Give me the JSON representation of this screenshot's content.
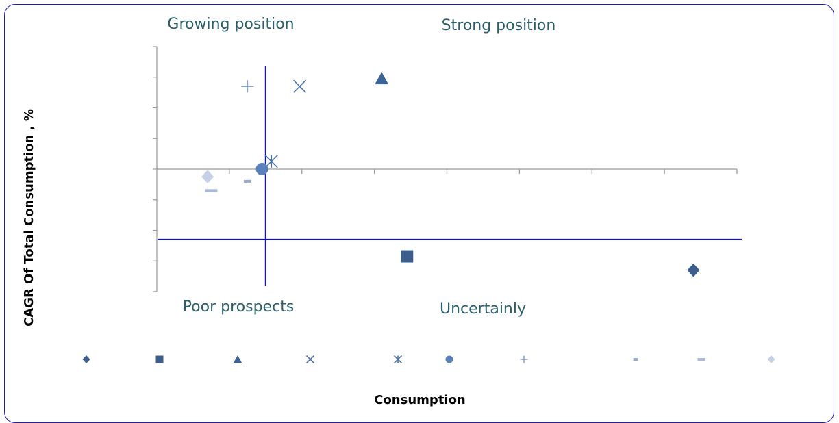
{
  "chart_data": {
    "type": "scatter",
    "title": "",
    "xlabel": "Consumption",
    "ylabel": "CAGR Of Total Consumption , %",
    "x_ticks": 8,
    "y_ticks": 8,
    "grid": false,
    "legend_position": "bottom",
    "quadrant_labels": {
      "top_left": "Growing position",
      "top_right": "Strong position",
      "bottom_left": "Poor prospects",
      "bottom_right": "Uncertainly"
    },
    "divider_x": 1.5,
    "divider_y": -2.3,
    "xlim": [
      0,
      8
    ],
    "ylim": [
      -4,
      4
    ],
    "series": [
      {
        "marker": "diamond",
        "color": "#3b5e8c",
        "x": 7.4,
        "y": -3.3
      },
      {
        "marker": "square",
        "color": "#3b5e8c",
        "x": 3.45,
        "y": -2.85
      },
      {
        "marker": "triangle",
        "color": "#3b6497",
        "x": 3.1,
        "y": 2.95
      },
      {
        "marker": "x",
        "color": "#4a72a8",
        "x": 1.97,
        "y": 2.7
      },
      {
        "marker": "asterisk",
        "color": "#4a72a8",
        "x": 1.58,
        "y": 0.25
      },
      {
        "marker": "circle",
        "color": "#5b81bd",
        "x": 1.45,
        "y": 0.0
      },
      {
        "marker": "plus",
        "color": "#8aa5d0",
        "x": 1.25,
        "y": 2.7
      },
      {
        "marker": "short-dash",
        "color": "#96a9cf",
        "x": 1.25,
        "y": -0.4
      },
      {
        "marker": "long-dash",
        "color": "#a9b9d9",
        "x": 0.75,
        "y": -0.7
      },
      {
        "marker": "diamond",
        "color": "#c5d0e6",
        "x": 0.7,
        "y": -0.25
      }
    ]
  }
}
